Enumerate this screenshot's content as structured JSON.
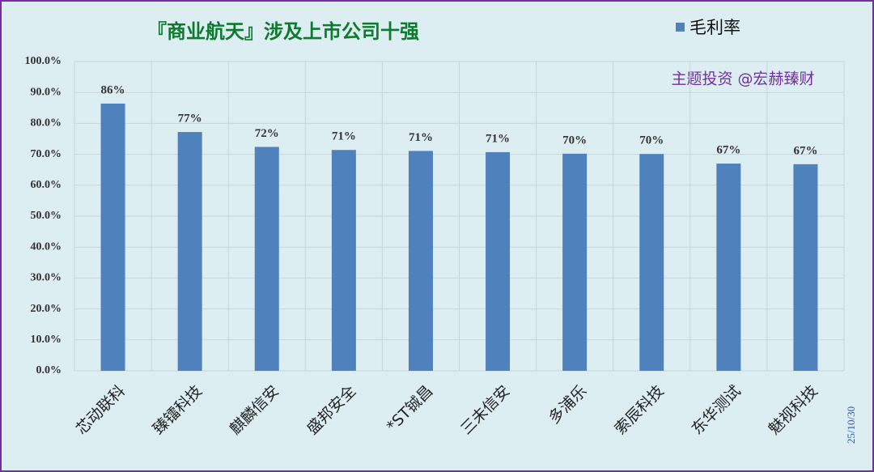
{
  "chart_data": {
    "type": "bar",
    "title": "『商业航天』涉及上市公司十强",
    "categories": [
      "芯动联科",
      "臻镭科技",
      "麒麟信安",
      "盛邦安全",
      "*ST铖昌",
      "三未信安",
      "多浦乐",
      "索辰科技",
      "东华测试",
      "魅视科技"
    ],
    "series": [
      {
        "name": "毛利率",
        "color": "#4f81bd",
        "values": [
          86.4,
          77.2,
          72.4,
          71.4,
          71.1,
          70.7,
          70.2,
          70.1,
          67.0,
          66.8
        ],
        "value_labels": [
          "86%",
          "77%",
          "72%",
          "71%",
          "71%",
          "71%",
          "70%",
          "70%",
          "67%",
          "67%"
        ]
      }
    ],
    "ylim": [
      0,
      100
    ],
    "yticks": [
      {
        "value": 0,
        "label": "0.0%"
      },
      {
        "value": 10,
        "label": "10.0%"
      },
      {
        "value": 20,
        "label": "20.0%"
      },
      {
        "value": 30,
        "label": "30.0%"
      },
      {
        "value": 40,
        "label": "40.0%"
      },
      {
        "value": 50,
        "label": "50.0%"
      },
      {
        "value": 60,
        "label": "60.0%"
      },
      {
        "value": 70,
        "label": "70.0%"
      },
      {
        "value": 80,
        "label": "80.0%"
      },
      {
        "value": 90,
        "label": "90.0%"
      },
      {
        "value": 100,
        "label": "100.0%"
      }
    ],
    "grid": true,
    "annotations": [
      "主题投资 @宏赫臻财",
      "25/10/30"
    ]
  }
}
